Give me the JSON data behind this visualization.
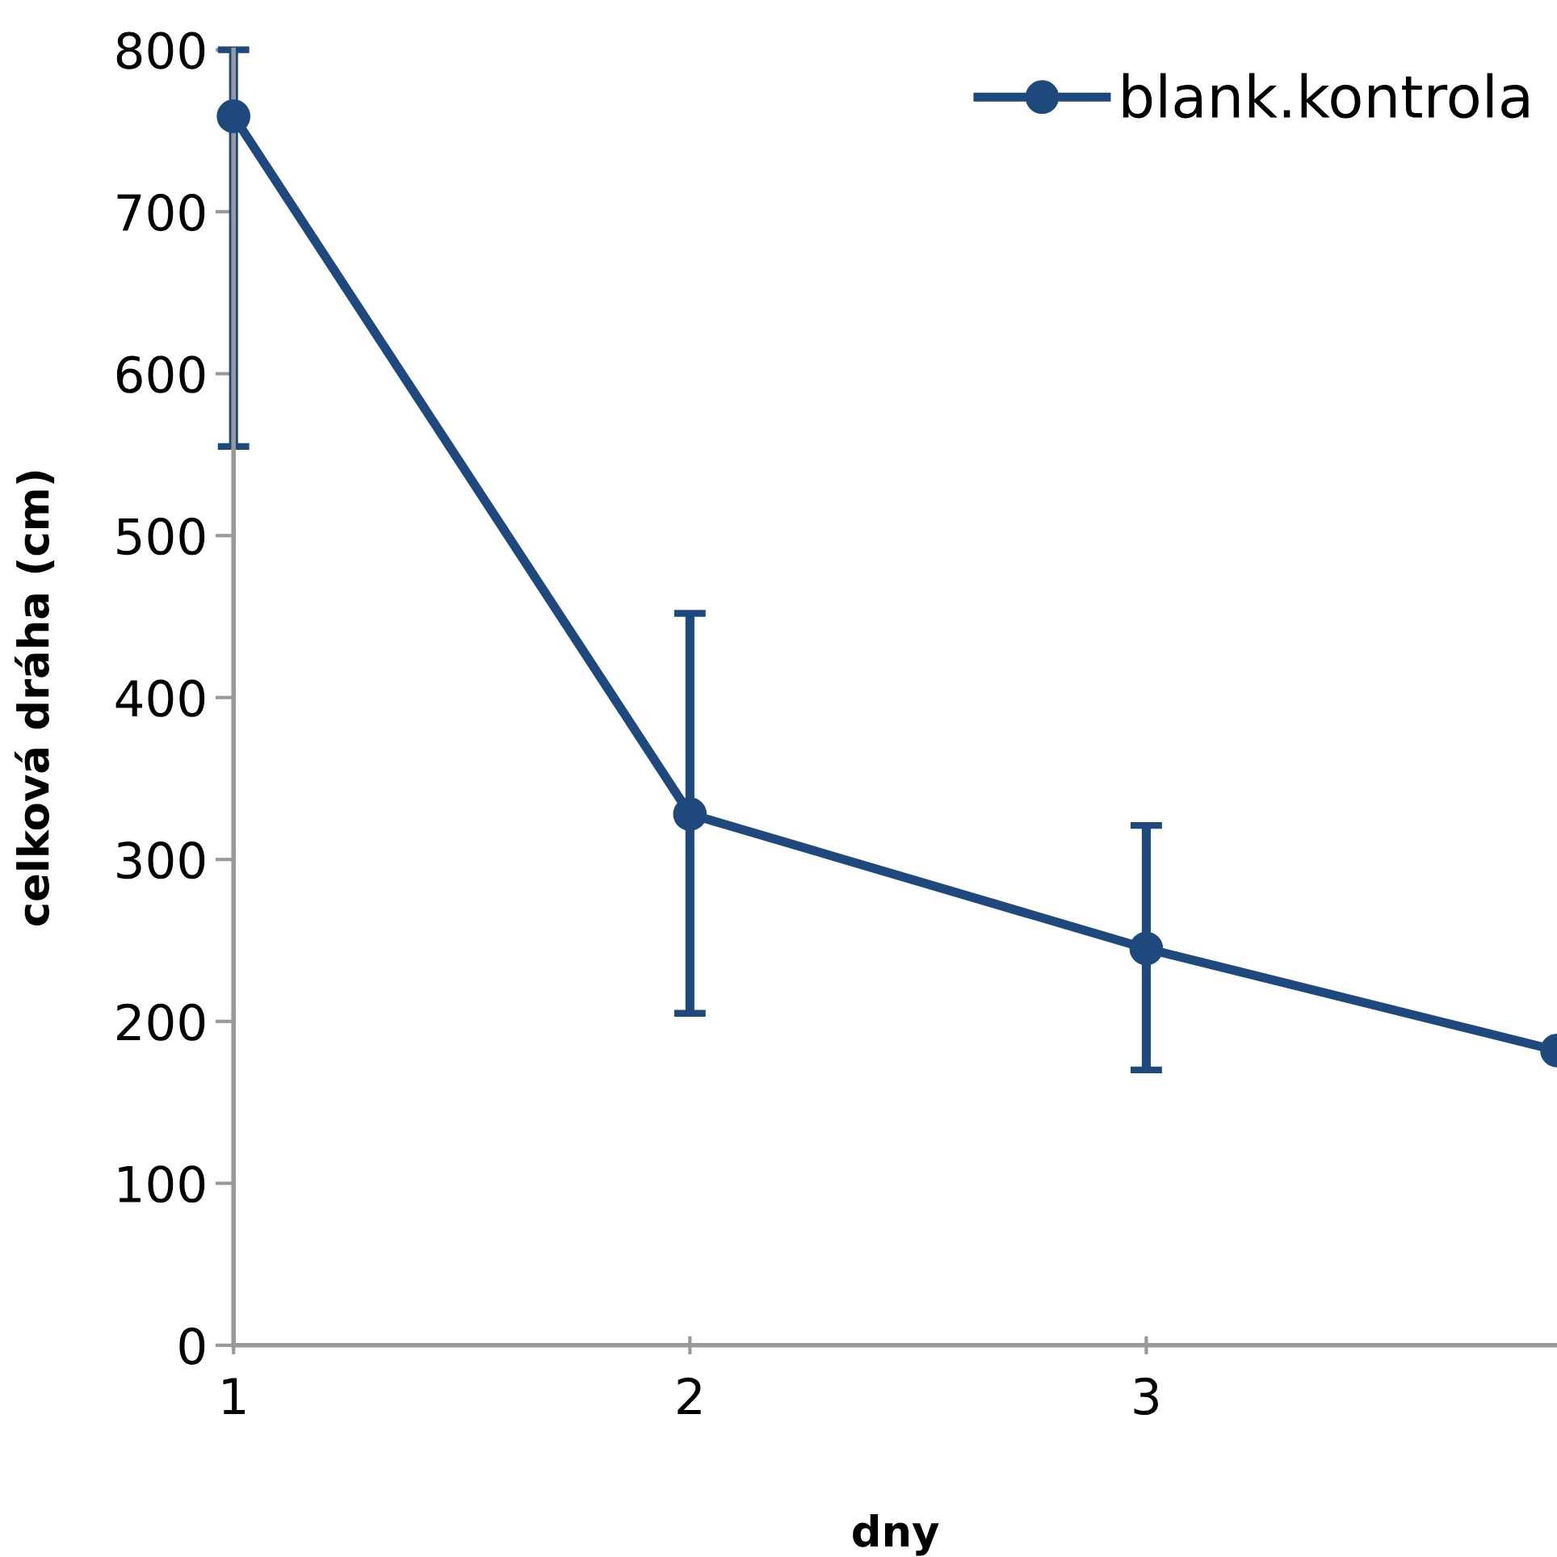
{
  "chart_data": {
    "type": "line",
    "xlabel": "dny",
    "ylabel": "celková dráha (cm)",
    "x": [
      1,
      2,
      3,
      3.9
    ],
    "series": [
      {
        "name": "blank.kontrola",
        "color": "#1f497d",
        "values": [
          759,
          328,
          245,
          182
        ],
        "errors": [
          [
            555,
            800
          ],
          [
            205,
            452
          ],
          [
            170,
            321
          ],
          null
        ]
      }
    ],
    "xlim": [
      1,
      3.9
    ],
    "xticks": [
      1,
      2,
      3
    ],
    "ylim": [
      0,
      800
    ],
    "yticks": [
      0,
      100,
      200,
      300,
      400,
      500,
      600,
      700,
      800
    ],
    "grid": false,
    "legend": "top right",
    "marker": "circle",
    "line_style": "solid"
  }
}
